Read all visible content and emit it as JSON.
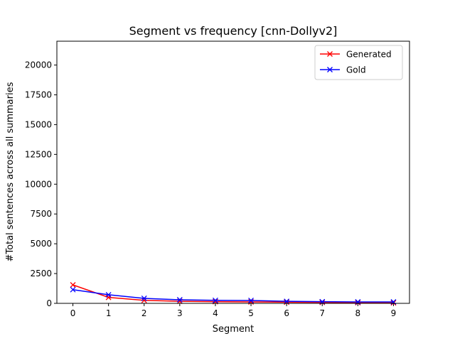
{
  "chart_data": {
    "type": "line",
    "title": "Segment vs frequency [cnn-Dollyv2]",
    "xlabel": "Segment",
    "ylabel": "#Total sentences across all summaries",
    "xlim": [
      -0.45,
      9.45
    ],
    "ylim": [
      0,
      22000
    ],
    "x": [
      0,
      1,
      2,
      3,
      4,
      5,
      6,
      7,
      8,
      9
    ],
    "xticks": [
      "0",
      "1",
      "2",
      "3",
      "4",
      "5",
      "6",
      "7",
      "8",
      "9"
    ],
    "yticks": [
      0,
      2500,
      5000,
      7500,
      10000,
      12500,
      15000,
      17500,
      20000
    ],
    "ytick_labels": [
      "0",
      "2500",
      "5000",
      "7500",
      "10000",
      "12500",
      "15000",
      "17500",
      "20000"
    ],
    "grid": false,
    "legend_position": "top-right",
    "series": [
      {
        "name": "Generated",
        "color": "#ff0000",
        "marker": "x",
        "values": [
          1550,
          500,
          250,
          170,
          140,
          120,
          100,
          80,
          60,
          40
        ]
      },
      {
        "name": "Gold",
        "color": "#0000ff",
        "marker": "x",
        "values": [
          1150,
          720,
          420,
          300,
          250,
          240,
          170,
          140,
          120,
          120
        ]
      }
    ]
  }
}
